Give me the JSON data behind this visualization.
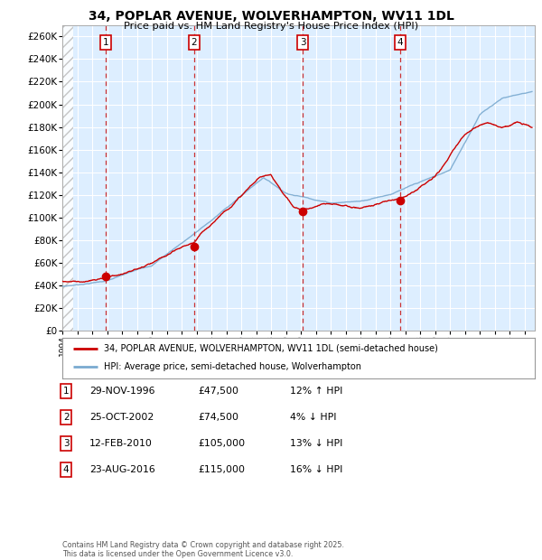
{
  "title": "34, POPLAR AVENUE, WOLVERHAMPTON, WV11 1DL",
  "subtitle": "Price paid vs. HM Land Registry's House Price Index (HPI)",
  "ylabel_ticks": [
    "£0",
    "£20K",
    "£40K",
    "£60K",
    "£80K",
    "£100K",
    "£120K",
    "£140K",
    "£160K",
    "£180K",
    "£200K",
    "£220K",
    "£240K",
    "£260K"
  ],
  "ytick_values": [
    0,
    20000,
    40000,
    60000,
    80000,
    100000,
    120000,
    140000,
    160000,
    180000,
    200000,
    220000,
    240000,
    260000
  ],
  "ylim": [
    0,
    270000
  ],
  "sale_markers": [
    {
      "num": 1,
      "year": 1996.92,
      "price": 47500,
      "date": "29-NOV-1996",
      "pct": "12%",
      "dir": "↑",
      "rel": "HPI"
    },
    {
      "num": 2,
      "year": 2002.83,
      "price": 74500,
      "date": "25-OCT-2002",
      "pct": "4%",
      "dir": "↓",
      "rel": "HPI"
    },
    {
      "num": 3,
      "year": 2010.12,
      "price": 105000,
      "date": "12-FEB-2010",
      "pct": "13%",
      "dir": "↓",
      "rel": "HPI"
    },
    {
      "num": 4,
      "year": 2016.65,
      "price": 115000,
      "date": "23-AUG-2016",
      "pct": "16%",
      "dir": "↓",
      "rel": "HPI"
    }
  ],
  "red_line_color": "#cc0000",
  "blue_line_color": "#7aaad0",
  "background_color": "#ddeeff",
  "grid_color": "#ffffff",
  "dashed_line_color": "#cc3333",
  "legend_label_red": "34, POPLAR AVENUE, WOLVERHAMPTON, WV11 1DL (semi-detached house)",
  "legend_label_blue": "HPI: Average price, semi-detached house, Wolverhampton",
  "footer": "Contains HM Land Registry data © Crown copyright and database right 2025.\nThis data is licensed under the Open Government Licence v3.0.",
  "table_rows": [
    [
      "1",
      "29-NOV-1996",
      "£47,500",
      "12% ↑ HPI"
    ],
    [
      "2",
      "25-OCT-2002",
      "£74,500",
      "4% ↓ HPI"
    ],
    [
      "3",
      "12-FEB-2010",
      "£105,000",
      "13% ↓ HPI"
    ],
    [
      "4",
      "23-AUG-2016",
      "£115,000",
      "16% ↓ HPI"
    ]
  ]
}
